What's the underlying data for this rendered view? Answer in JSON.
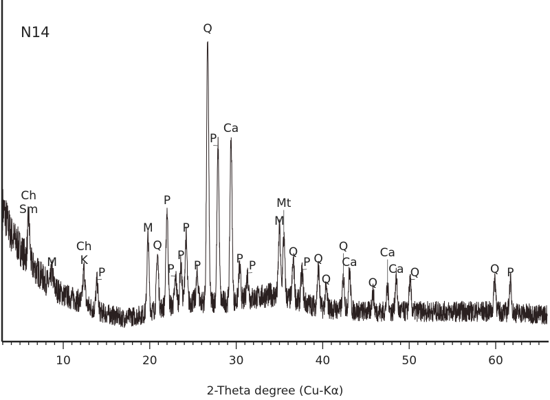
{
  "chart_data": {
    "type": "line",
    "title": "N14",
    "xlabel": "2-Theta degree (Cu-Kα)",
    "ylabel": "",
    "xlim": [
      3,
      66
    ],
    "ylim": [
      0,
      100
    ],
    "xticks": [
      10,
      20,
      30,
      40,
      50,
      60
    ],
    "y_axis_ticks_shown": false,
    "grid": false,
    "line_color": "#2a2020",
    "background_points": [
      [
        3,
        40
      ],
      [
        4,
        32
      ],
      [
        5,
        28
      ],
      [
        6,
        24
      ],
      [
        8,
        18
      ],
      [
        10,
        14
      ],
      [
        12,
        12
      ],
      [
        14,
        9
      ],
      [
        17,
        7
      ],
      [
        19,
        8
      ],
      [
        21,
        10
      ],
      [
        25,
        12
      ],
      [
        30,
        12
      ],
      [
        34,
        14
      ],
      [
        36,
        13
      ],
      [
        40,
        10
      ],
      [
        45,
        9
      ],
      [
        50,
        9
      ],
      [
        55,
        9
      ],
      [
        60,
        9
      ],
      [
        66,
        8
      ]
    ],
    "peaks": [
      {
        "x": 6.0,
        "y": 36.8,
        "label": [
          "Ch",
          "Sm"
        ]
      },
      {
        "x": 8.7,
        "y": 20.9,
        "label": [
          "M"
        ]
      },
      {
        "x": 12.4,
        "y": 21.6,
        "label": [
          "Ch",
          "K"
        ]
      },
      {
        "x": 13.9,
        "y": 17.9,
        "label": [
          "P"
        ]
      },
      {
        "x": 19.8,
        "y": 31.2,
        "label": [
          "M"
        ]
      },
      {
        "x": 20.9,
        "y": 26.0,
        "label": [
          "Q"
        ]
      },
      {
        "x": 22.0,
        "y": 39.4,
        "label": [
          "P"
        ]
      },
      {
        "x": 23.0,
        "y": 18.9,
        "label": [
          "P"
        ]
      },
      {
        "x": 23.6,
        "y": 23.0,
        "label": [
          "P"
        ]
      },
      {
        "x": 24.2,
        "y": 31.2,
        "label": [
          "P"
        ]
      },
      {
        "x": 25.5,
        "y": 19.9,
        "label": [
          "P"
        ]
      },
      {
        "x": 26.7,
        "y": 90.8,
        "label": [
          "Q"
        ]
      },
      {
        "x": 27.9,
        "y": 57.9,
        "label": [
          "P"
        ]
      },
      {
        "x": 29.4,
        "y": 61.0,
        "label": [
          "Ca"
        ]
      },
      {
        "x": 30.4,
        "y": 22.0,
        "label": [
          "P"
        ]
      },
      {
        "x": 31.3,
        "y": 19.9,
        "label": [
          "P"
        ]
      },
      {
        "x": 35.0,
        "y": 33.3,
        "label": [
          "M"
        ]
      },
      {
        "x": 35.5,
        "y": 31.2,
        "label": [
          "Mt"
        ]
      },
      {
        "x": 36.6,
        "y": 24.0,
        "label": [
          "Q"
        ]
      },
      {
        "x": 37.6,
        "y": 20.9,
        "label": [
          "P"
        ]
      },
      {
        "x": 39.5,
        "y": 22.0,
        "label": [
          "Q"
        ]
      },
      {
        "x": 40.4,
        "y": 15.8,
        "label": [
          "Q"
        ]
      },
      {
        "x": 42.4,
        "y": 18.9,
        "label": [
          "Q"
        ]
      },
      {
        "x": 43.1,
        "y": 20.9,
        "label": [
          "Ca"
        ]
      },
      {
        "x": 45.8,
        "y": 14.8,
        "label": [
          "Q"
        ]
      },
      {
        "x": 47.5,
        "y": 15.8,
        "label": [
          "Ca"
        ]
      },
      {
        "x": 48.5,
        "y": 18.9,
        "label": [
          "Ca"
        ]
      },
      {
        "x": 50.1,
        "y": 17.9,
        "label": [
          "Q"
        ]
      },
      {
        "x": 59.9,
        "y": 18.9,
        "label": [
          "Q"
        ]
      },
      {
        "x": 61.7,
        "y": 17.9,
        "label": [
          "P"
        ]
      }
    ]
  }
}
